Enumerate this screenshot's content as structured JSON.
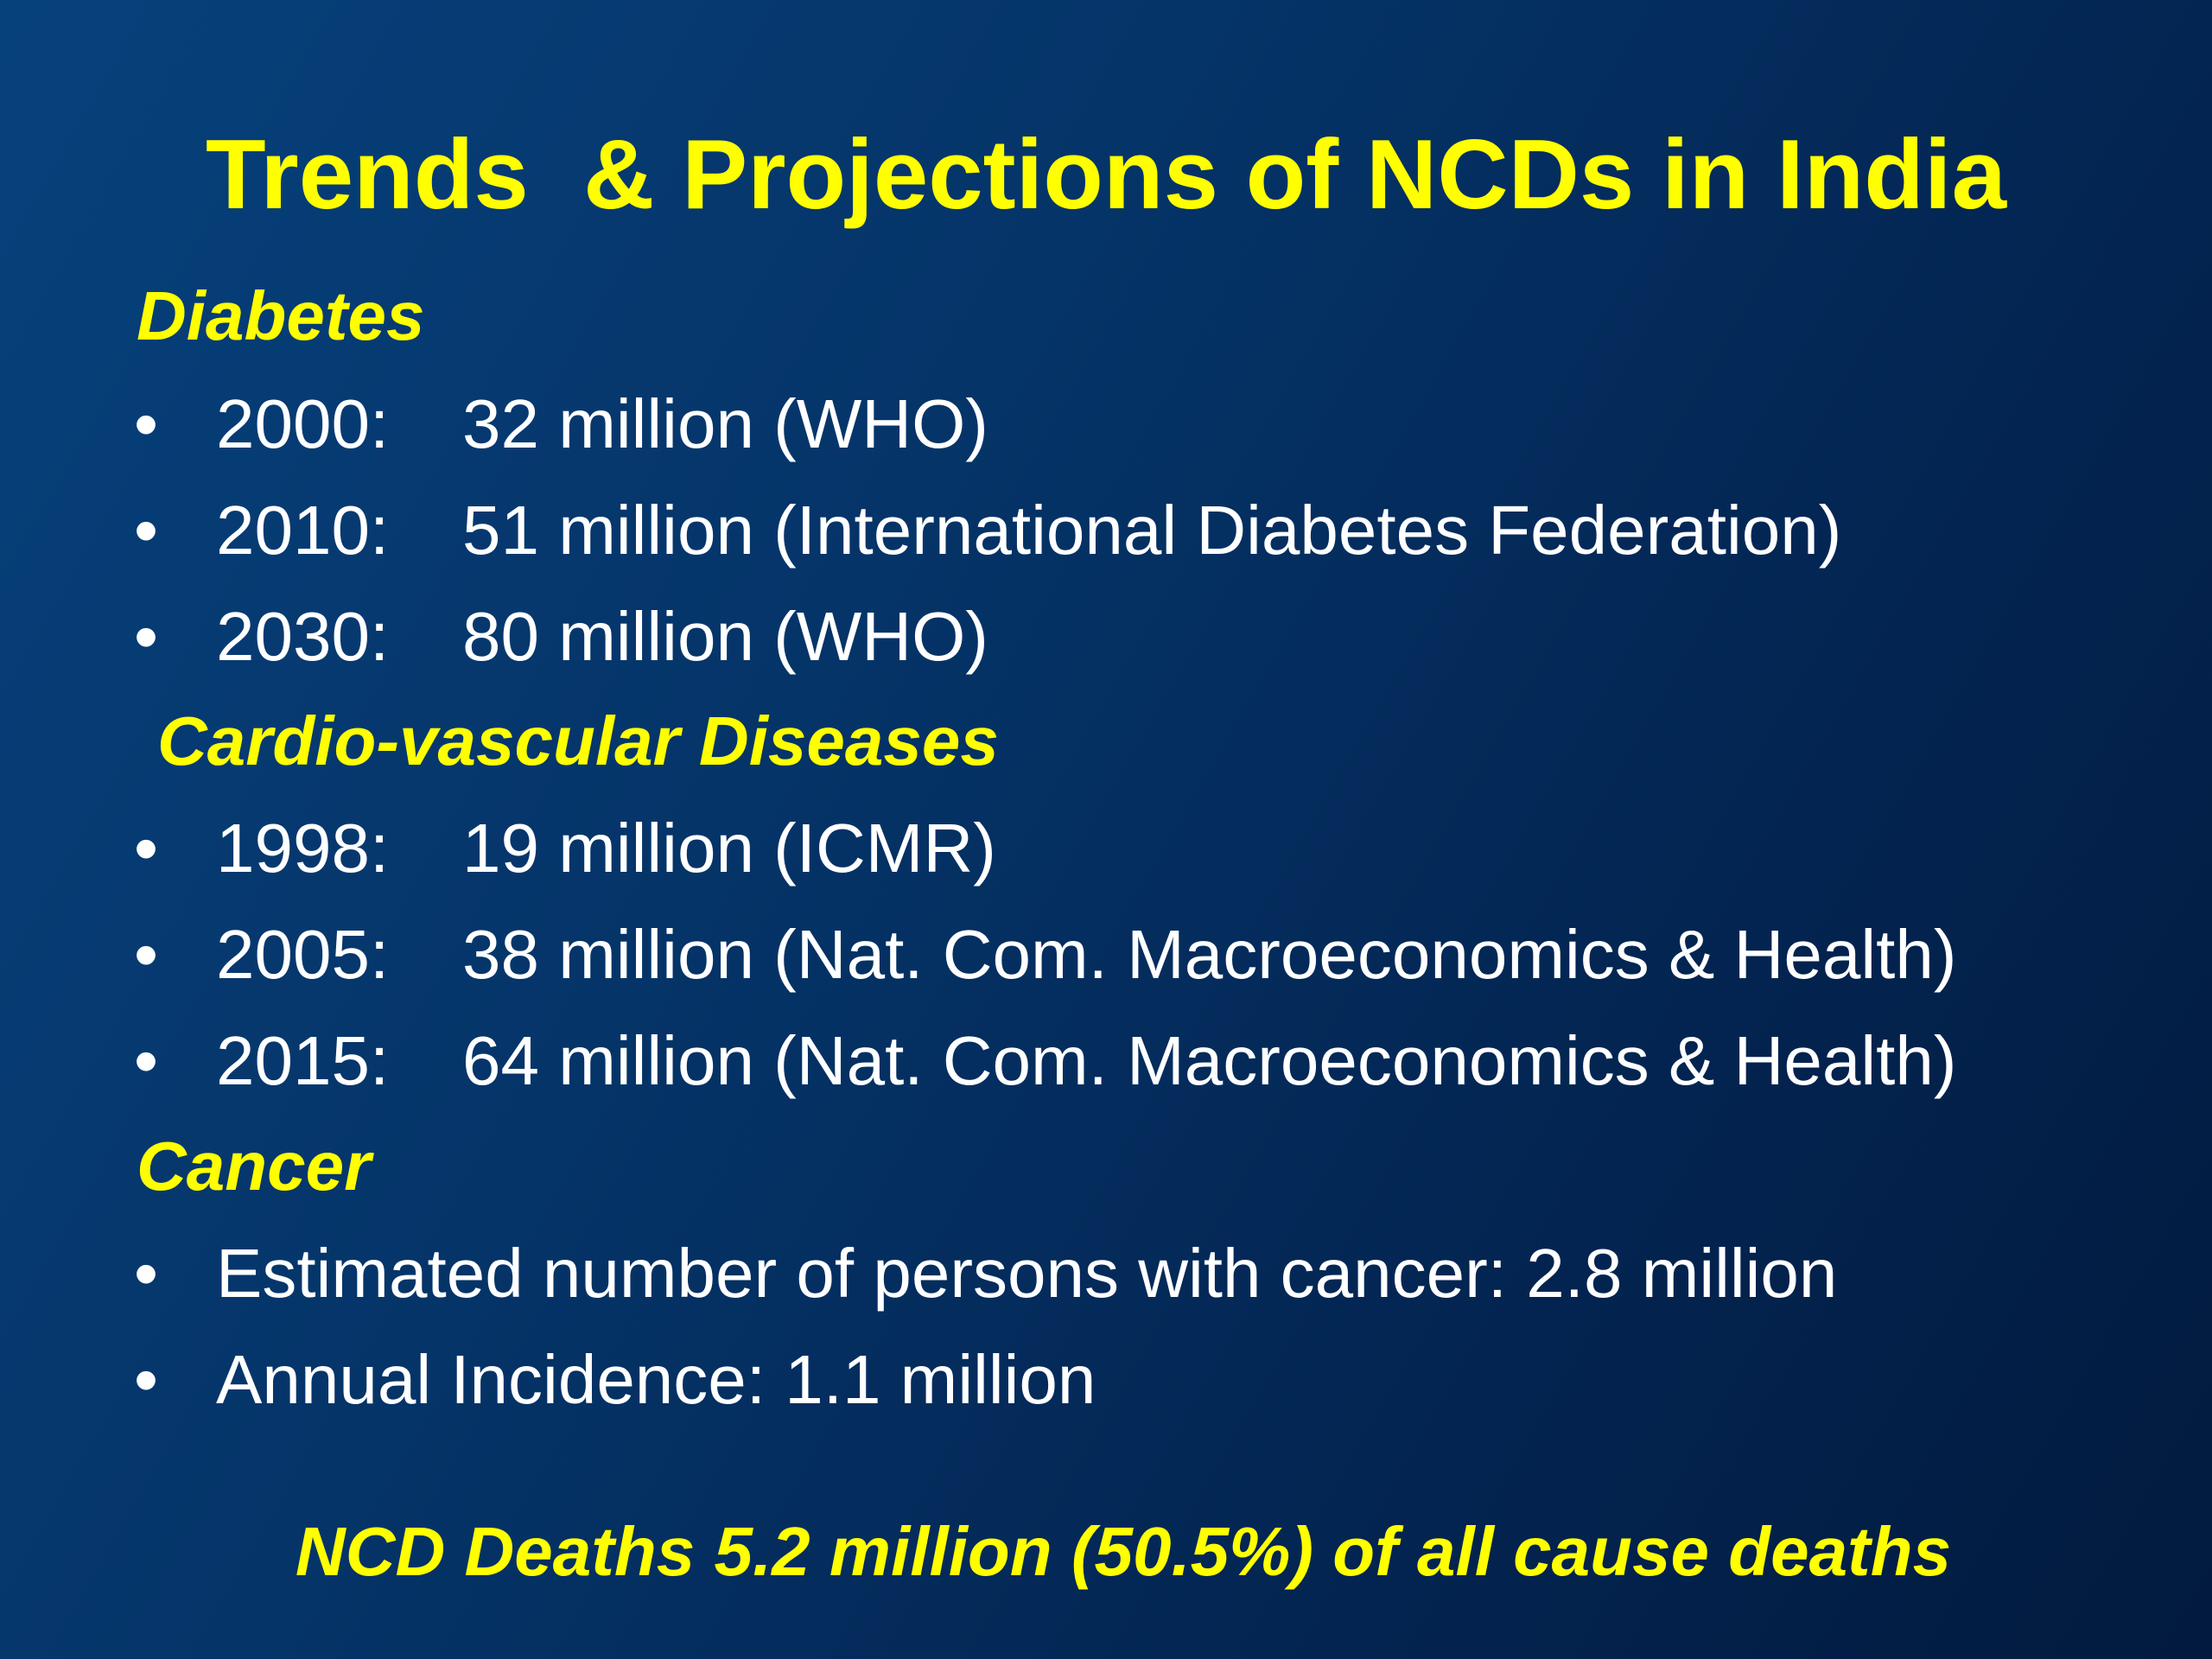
{
  "slide": {
    "title": "Trends  & Projections of NCDs in India",
    "sections": [
      {
        "heading": "Diabetes",
        "items": [
          {
            "year": "2000:",
            "value": "32 million (WHO)"
          },
          {
            "year": "2010:",
            "value": "51 million (International Diabetes Federation)"
          },
          {
            "year": "2030:",
            "value": "80 million (WHO)"
          }
        ]
      },
      {
        "heading": "Cardio-vascular Diseases",
        "items": [
          {
            "year": "1998:",
            "value": "19 million (ICMR)"
          },
          {
            "year": "2005:",
            "value": "38 million (Nat. Com. Macroeconomics & Health)"
          },
          {
            "year": "2015:",
            "value": "64 million (Nat. Com. Macroeconomics & Health)"
          }
        ]
      },
      {
        "heading": "Cancer",
        "items": [
          {
            "text": "Estimated number of persons with cancer: 2.8 million"
          },
          {
            "text": "Annual Incidence: 1.1 million"
          }
        ]
      }
    ],
    "bullet": "•",
    "footer": "NCD Deaths 5.2 million (50.5%) of all cause deaths",
    "colors": {
      "heading": "#ffff00",
      "body_text": "#ffffff",
      "background": "#053468"
    }
  }
}
